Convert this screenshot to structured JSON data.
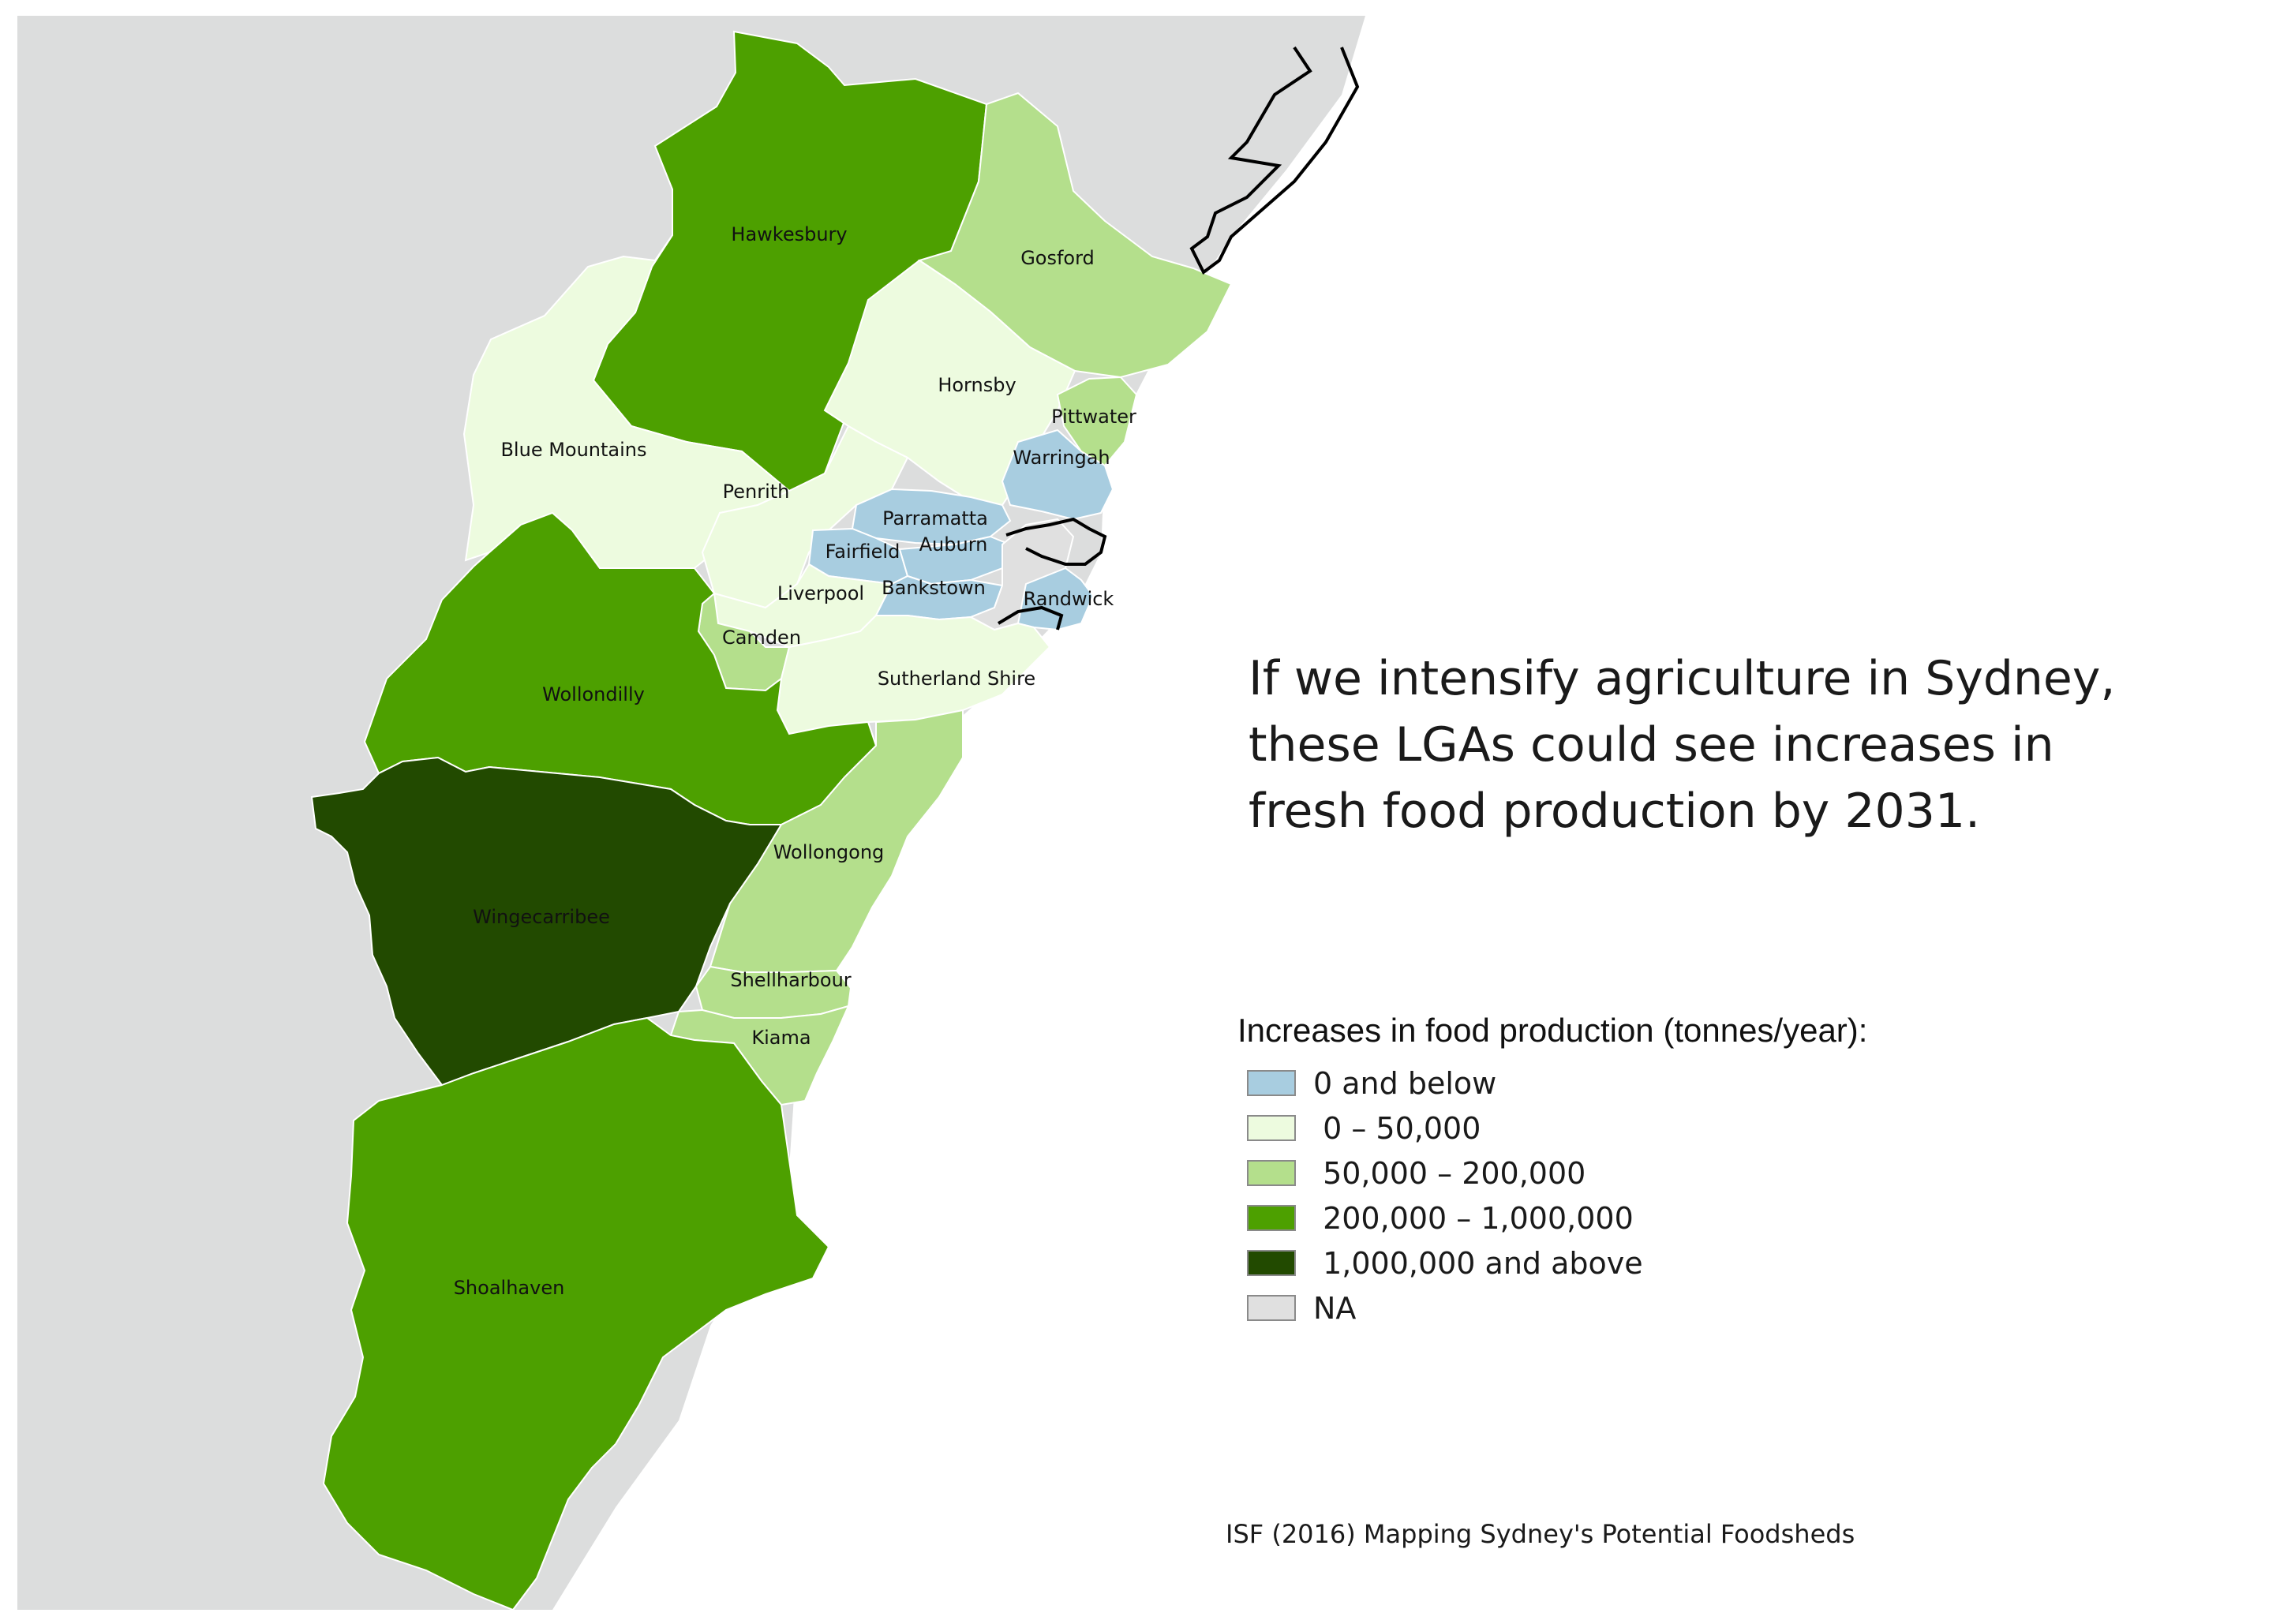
{
  "headline": {
    "lines": [
      "If we intensify agriculture in Sydney,",
      "these LGAs could see increases in",
      "fresh food production by 2031."
    ]
  },
  "legend": {
    "title": "Increases in food production (tonnes/year):",
    "items": [
      {
        "label": "0 and below",
        "color": "#a8cde0",
        "class": "below-zero"
      },
      {
        "label": " 0 – 50,000",
        "color": "#edfbdf",
        "class": "low"
      },
      {
        "label": " 50,000 – 200,000",
        "color": "#b4df8c",
        "class": "medium"
      },
      {
        "label": " 200,000 – 1,000,000",
        "color": "#4da000",
        "class": "high"
      },
      {
        "label": " 1,000,000 and above",
        "color": "#224a00",
        "class": "very-high"
      },
      {
        "label": "NA",
        "color": "#e0e0e0",
        "class": "na"
      }
    ]
  },
  "map": {
    "background_color": "#dcdddd",
    "ocean_color": "#ffffff",
    "lgas": [
      {
        "name": "Hawkesbury",
        "class": "high"
      },
      {
        "name": "Gosford",
        "class": "medium"
      },
      {
        "name": "Hornsby",
        "class": "low"
      },
      {
        "name": "Pittwater",
        "class": "medium"
      },
      {
        "name": "Warringah",
        "class": "below-zero"
      },
      {
        "name": "Blue Mountains",
        "class": "low"
      },
      {
        "name": "Penrith",
        "class": "low"
      },
      {
        "name": "Parramatta",
        "class": "below-zero"
      },
      {
        "name": "Fairfield",
        "class": "below-zero"
      },
      {
        "name": "Auburn",
        "class": "below-zero"
      },
      {
        "name": "Liverpool",
        "class": "low"
      },
      {
        "name": "Bankstown",
        "class": "below-zero"
      },
      {
        "name": "Randwick",
        "class": "below-zero"
      },
      {
        "name": "Camden",
        "class": "medium"
      },
      {
        "name": "Wollondilly",
        "class": "high"
      },
      {
        "name": "Sutherland Shire",
        "class": "low"
      },
      {
        "name": "Wollongong",
        "class": "medium"
      },
      {
        "name": "Wingecarribee",
        "class": "very-high"
      },
      {
        "name": "Shellharbour",
        "class": "medium"
      },
      {
        "name": "Kiama",
        "class": "medium"
      },
      {
        "name": "Shoalhaven",
        "class": "high"
      }
    ]
  },
  "source": "ISF (2016) Mapping Sydney's Potential Foodsheds"
}
